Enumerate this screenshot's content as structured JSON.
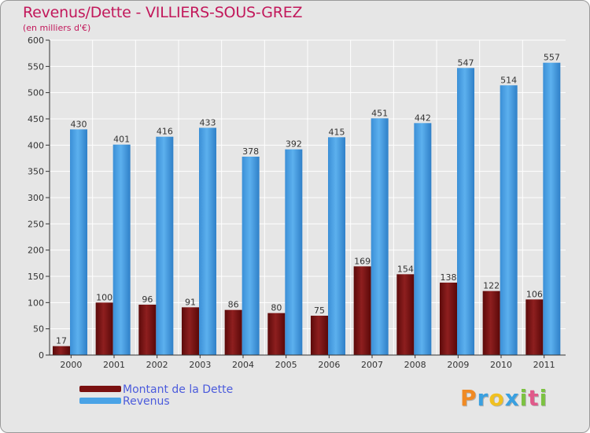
{
  "header": {
    "title": "Revenus/Dette - VILLIERS-SOUS-GREZ",
    "subtitle": "(en milliers d'€)"
  },
  "legend": {
    "items": [
      {
        "label": "Montant de la Dette",
        "color": "#7a1010"
      },
      {
        "label": "Revenus",
        "color": "#4aa3e6"
      }
    ]
  },
  "logo": {
    "letters": [
      "P",
      "r",
      "o",
      "x",
      "i",
      "t",
      "i"
    ],
    "colors": [
      "#f08a24",
      "#3aa0e0",
      "#f0c020",
      "#3aa0e0",
      "#7cc242",
      "#e05a8a",
      "#7cc242"
    ]
  },
  "chart_data": {
    "type": "bar",
    "title": "Revenus/Dette - VILLIERS-SOUS-GREZ",
    "ylabel": "(en milliers d'€)",
    "xlabel": "",
    "ylim": [
      0,
      600
    ],
    "yticks": [
      0,
      50,
      100,
      150,
      200,
      250,
      300,
      350,
      400,
      450,
      500,
      550,
      600
    ],
    "grid": true,
    "legend_position": "bottom-left",
    "categories": [
      "2000",
      "2001",
      "2002",
      "2003",
      "2004",
      "2005",
      "2006",
      "2007",
      "2008",
      "2009",
      "2010",
      "2011"
    ],
    "series": [
      {
        "name": "Montant de la Dette",
        "color": "#7a1010",
        "values": [
          17,
          100,
          96,
          91,
          86,
          80,
          75,
          169,
          154,
          138,
          122,
          106
        ]
      },
      {
        "name": "Revenus",
        "color": "#4aa3e6",
        "values": [
          430,
          401,
          416,
          433,
          378,
          392,
          415,
          451,
          442,
          547,
          514,
          557
        ]
      }
    ]
  }
}
